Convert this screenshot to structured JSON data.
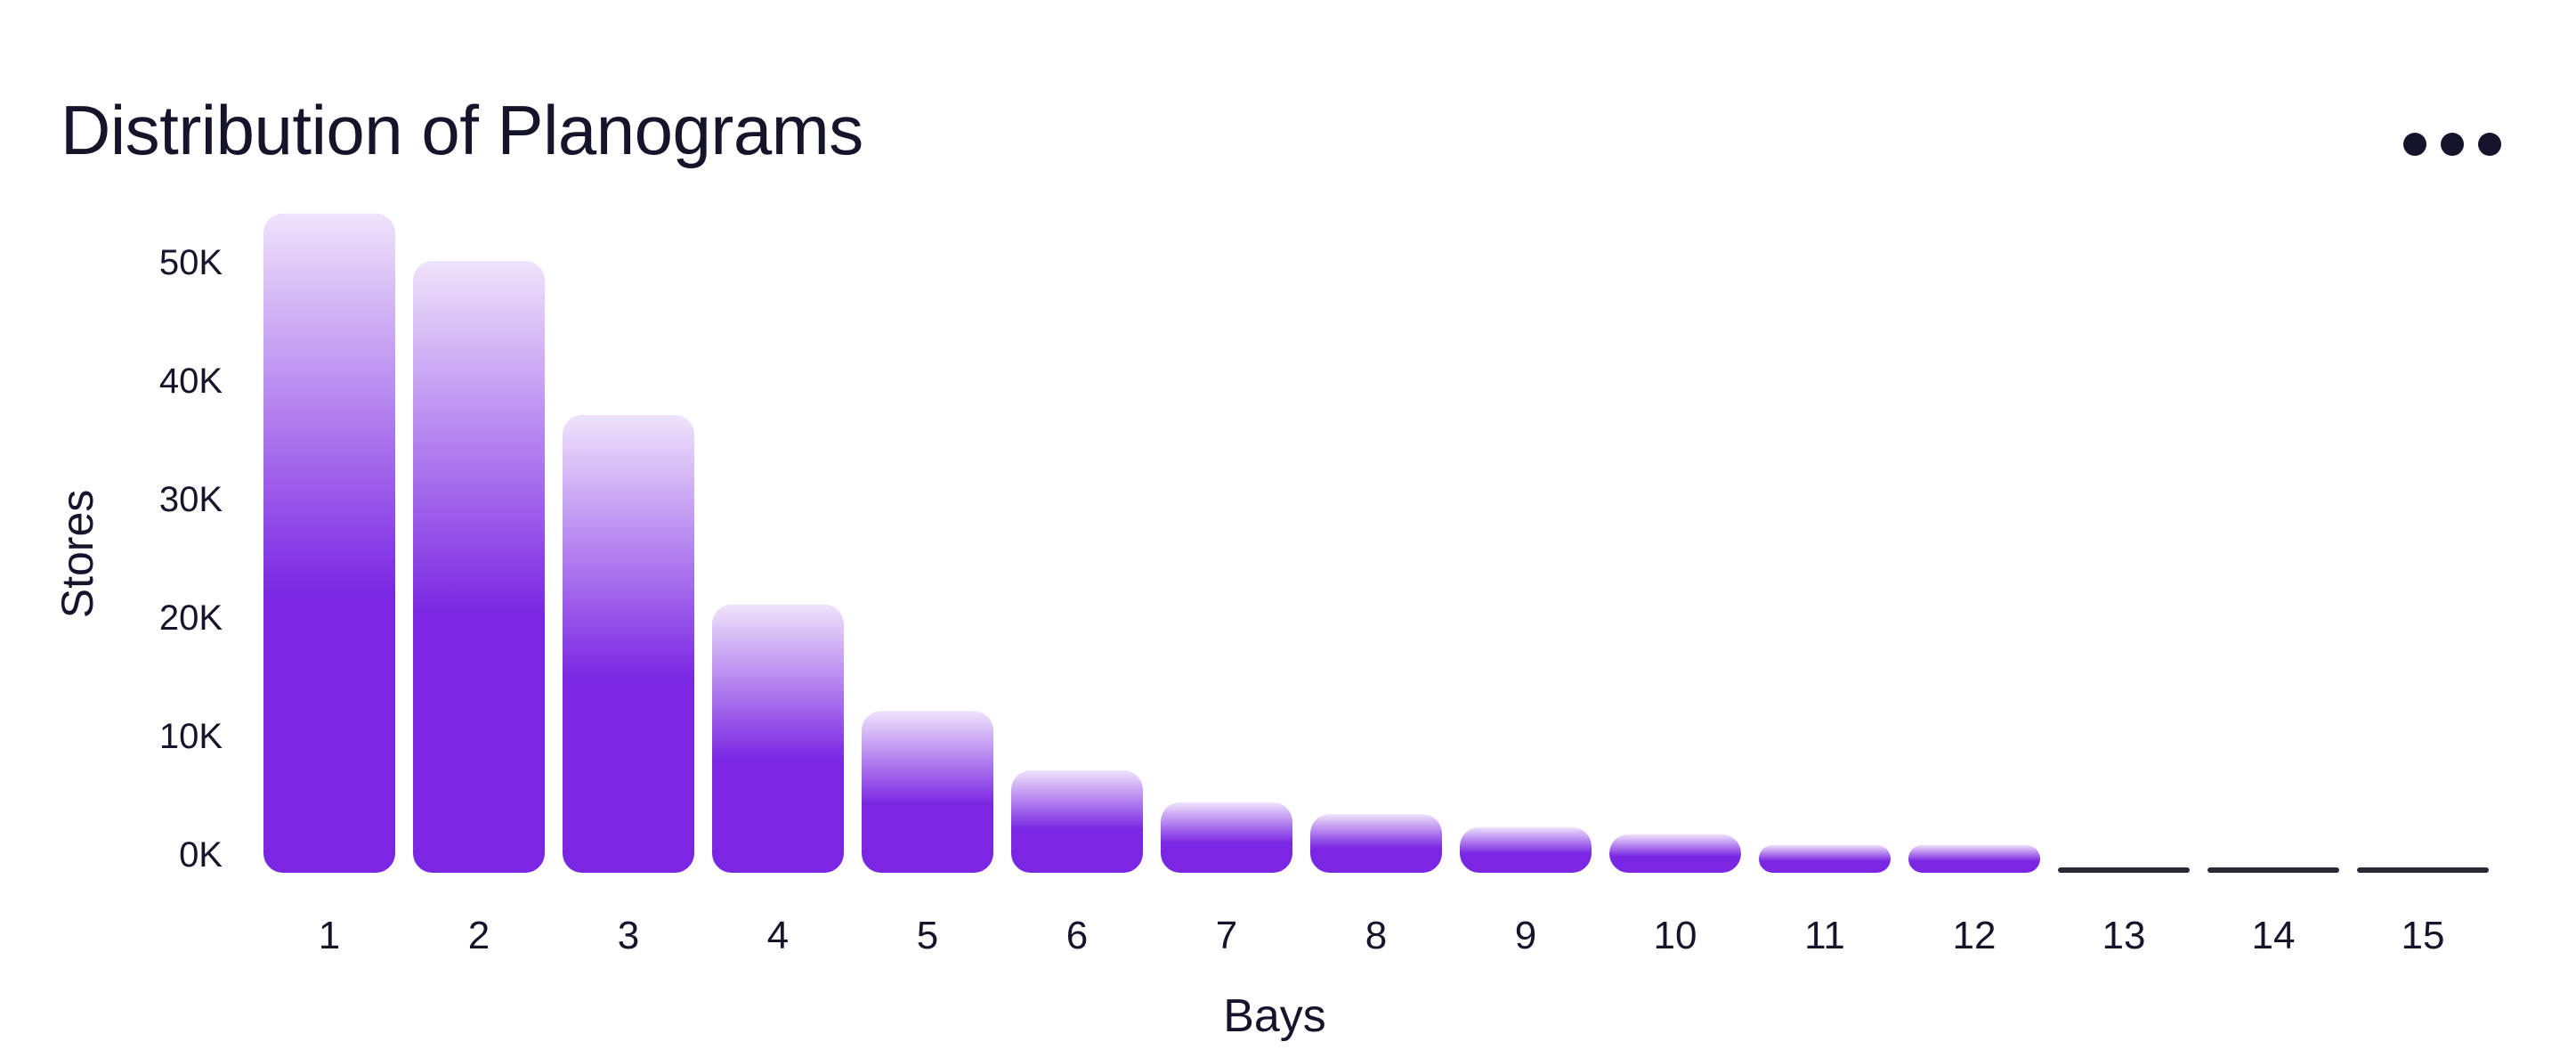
{
  "title": "Distribution of Planograms",
  "more_menu": {
    "icon": "more-horizontal-icon"
  },
  "colors": {
    "bar_bottom": "#7A26E3",
    "bar_top": "#EFE3FB",
    "zero_bar": "#2A2833",
    "text": "#16142B"
  },
  "chart_data": {
    "type": "bar",
    "title": "Distribution of Planograms",
    "xlabel": "Bays",
    "ylabel": "Stores",
    "categories": [
      "1",
      "2",
      "3",
      "4",
      "5",
      "6",
      "7",
      "8",
      "9",
      "10",
      "11",
      "12",
      "13",
      "14",
      "15"
    ],
    "values": [
      54000,
      50000,
      37000,
      21000,
      12000,
      7000,
      4300,
      3300,
      2200,
      1600,
      700,
      700,
      0,
      0,
      0
    ],
    "ylim": [
      0,
      55000
    ],
    "yticks": [
      0,
      10000,
      20000,
      30000,
      40000,
      50000
    ],
    "ytick_labels": [
      "0K",
      "10K",
      "20K",
      "30K",
      "40K",
      "50K"
    ],
    "grid": false,
    "legend": "none"
  }
}
